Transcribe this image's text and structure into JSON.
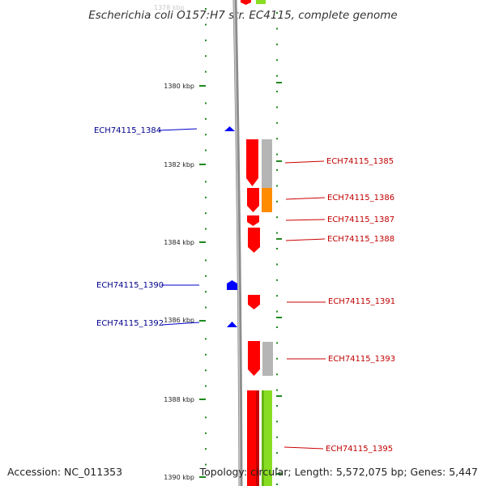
{
  "title": "Escherichia coli O157:H7 str. EC4115, complete genome",
  "accession": "Accession: NC_011353",
  "summary": "Topology: circular; Length: 5,572,075 bp; Genes: 5,447",
  "colors": {
    "forward_gene": "#0000ff",
    "reverse_gene": "#ff0000",
    "backbone": "#8c8c8c",
    "tick": "#1f8a1f",
    "label_forward": "#00008b",
    "label_reverse": "#c00000",
    "cog_gray": "#b5b5b5",
    "cog_orange": "#ff8c00",
    "cog_green": "#88dd22"
  },
  "ruler": {
    "labels": [
      "1380 kbp",
      "1382 kbp",
      "1384 kbp",
      "1386 kbp",
      "1388 kbp",
      "1390 kbp"
    ],
    "top_partial_label": "1378 kbp"
  },
  "forward_genes": [
    {
      "id": "ECH74115_1384"
    },
    {
      "id": "ECH74115_1390"
    },
    {
      "id": "ECH74115_1392"
    }
  ],
  "reverse_genes": [
    {
      "id": "ECH74115_1385"
    },
    {
      "id": "ECH74115_1386"
    },
    {
      "id": "ECH74115_1387"
    },
    {
      "id": "ECH74115_1388"
    },
    {
      "id": "ECH74115_1391"
    },
    {
      "id": "ECH74115_1393"
    },
    {
      "id": "ECH74115_1395"
    }
  ]
}
